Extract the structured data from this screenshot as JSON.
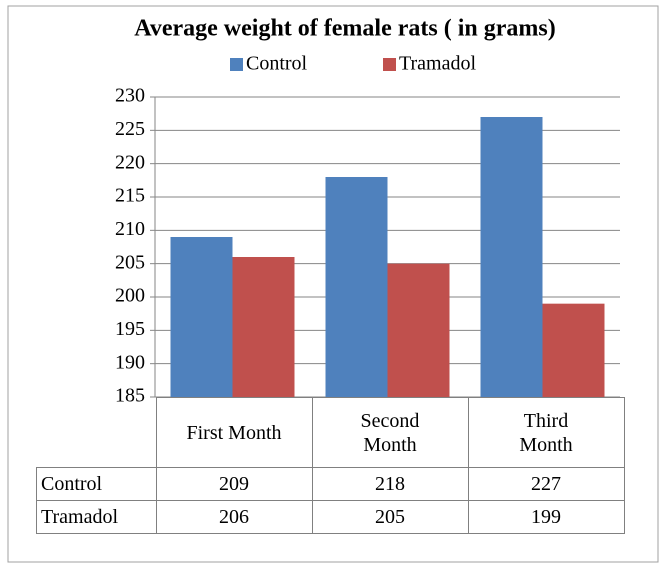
{
  "chart_data": {
    "type": "bar",
    "title": "Average weight of female rats ( in grams)",
    "categories": [
      "First Month",
      "Second Month",
      "Third Month"
    ],
    "series": [
      {
        "name": "Control",
        "color": "#4f81bd",
        "values": [
          209,
          218,
          227
        ]
      },
      {
        "name": "Tramadol",
        "color": "#c0504d",
        "values": [
          206,
          205,
          199
        ]
      }
    ],
    "ylim": [
      185,
      230
    ],
    "yticks": [
      185,
      190,
      195,
      200,
      205,
      210,
      215,
      220,
      225,
      230
    ],
    "grid": true,
    "legend": "top",
    "data_table": true
  }
}
